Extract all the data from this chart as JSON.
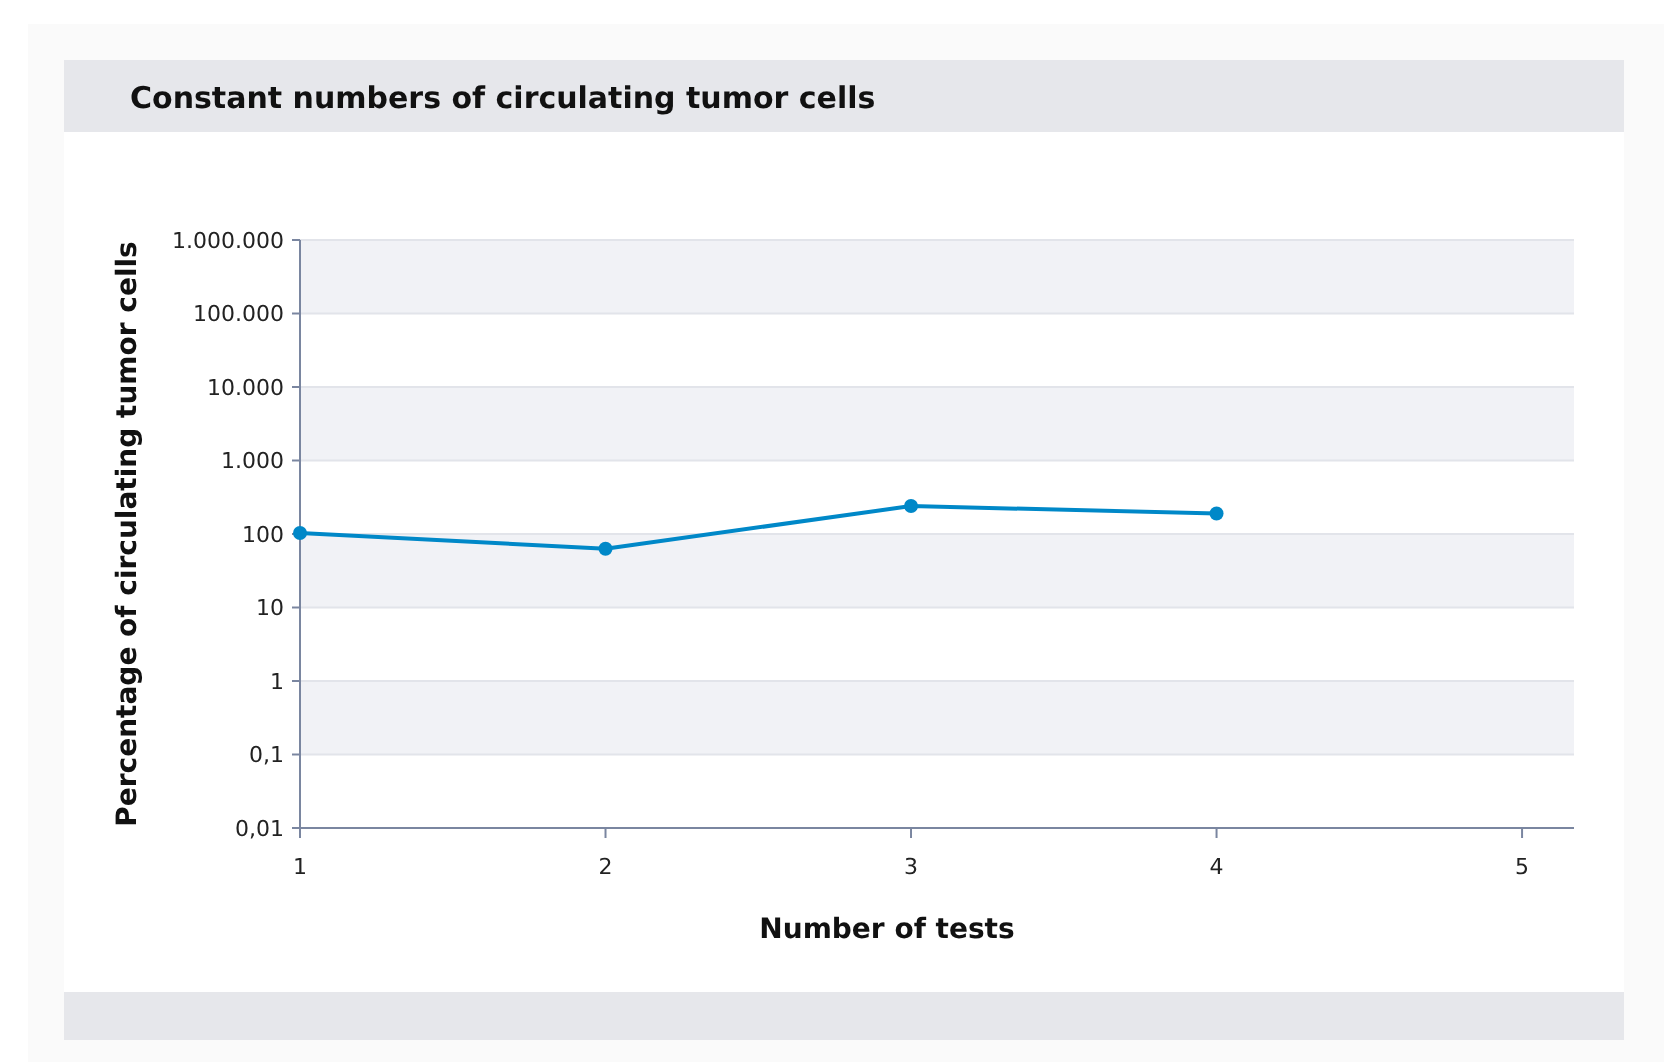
{
  "chart_data": {
    "type": "line",
    "title": "Constant numbers of circulating tumor cells",
    "xlabel": "Number of tests",
    "ylabel": "Percentage of circulating tumor cells",
    "x": [
      1,
      2,
      3,
      4
    ],
    "series": [
      {
        "color": "#0088c8",
        "values": [
          103,
          63,
          240,
          190
        ]
      }
    ],
    "log": "y",
    "grid": "y",
    "marker": "circle",
    "line_style": "solid",
    "xlim": [
      1,
      5.17
    ],
    "xticks": [
      1,
      2,
      3,
      4,
      5
    ],
    "ylim": [
      0.01,
      1000000
    ],
    "yticks": [
      {
        "value": 0.01,
        "label": "0,01"
      },
      {
        "value": 0.1,
        "label": "0,1"
      },
      1,
      10,
      100,
      {
        "value": 1000,
        "label": "1.000"
      },
      {
        "value": 10000,
        "label": "10.000"
      },
      {
        "value": 100000,
        "label": "100.000"
      },
      {
        "value": 1000000,
        "label": "1.000.000"
      }
    ]
  }
}
